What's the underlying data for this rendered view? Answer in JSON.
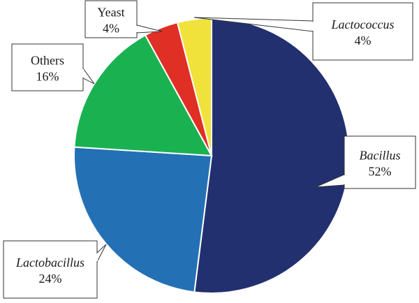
{
  "chart_data": {
    "type": "pie",
    "title": "",
    "slices": [
      {
        "label": "Bacillus",
        "value": 52,
        "value_label": "52%",
        "italic": true,
        "color": "#22306f"
      },
      {
        "label": "Lactobacillus",
        "value": 24,
        "value_label": "24%",
        "italic": true,
        "color": "#2470b5"
      },
      {
        "label": "Others",
        "value": 16,
        "value_label": "16%",
        "italic": false,
        "color": "#1ab250"
      },
      {
        "label": "Yeast",
        "value": 4,
        "value_label": "4%",
        "italic": false,
        "color": "#e02f24"
      },
      {
        "label": "Lactococcus",
        "value": 4,
        "value_label": "4%",
        "italic": true,
        "color": "#f0e23b"
      }
    ]
  }
}
